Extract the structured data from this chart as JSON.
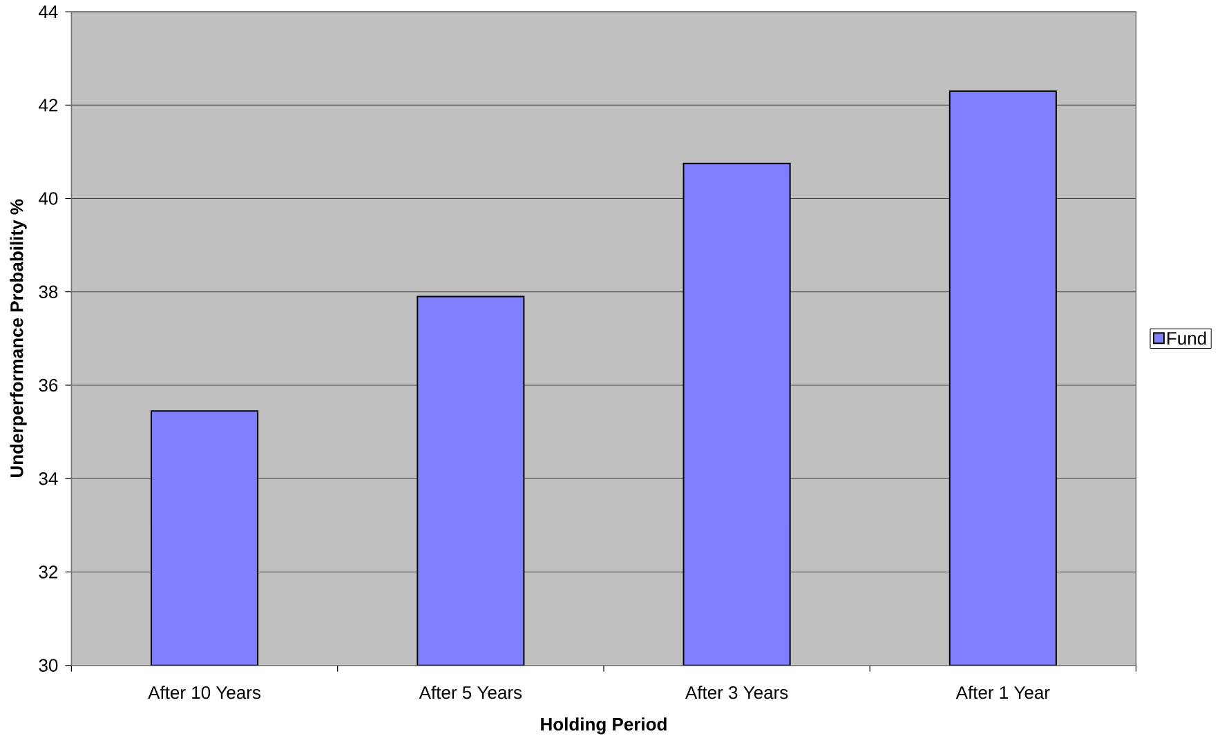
{
  "chart_data": {
    "type": "bar",
    "xlabel": "Holding Period",
    "ylabel": "Underperformance Probability %",
    "categories": [
      "After 10 Years",
      "After 5 Years",
      "After 3 Years",
      "After 1 Year"
    ],
    "series": [
      {
        "name": "Fund",
        "color": "#8080ff",
        "values": [
          35.45,
          37.9,
          40.75,
          42.3
        ]
      }
    ],
    "ylim": [
      30,
      44
    ],
    "yticks": [
      30,
      32,
      34,
      36,
      38,
      40,
      42,
      44
    ],
    "grid": "y",
    "legend": "right"
  }
}
